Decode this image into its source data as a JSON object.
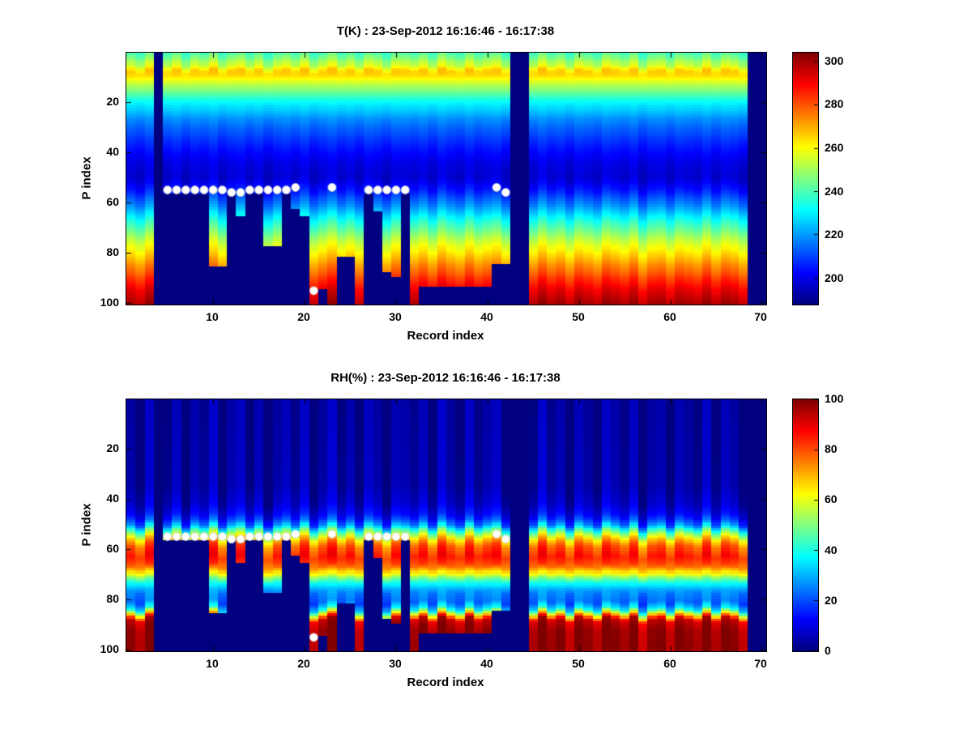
{
  "figure": {
    "background": "#ffffff",
    "masked_color": "#000080",
    "dot_color": "#ffffff"
  },
  "shared": {
    "n_records": 70,
    "n_levels": 100,
    "record_offsets": [
      0.2,
      -0.5,
      0.8,
      0.1,
      -0.3,
      0.6,
      -0.8,
      0.4,
      -0.1,
      0.9,
      -0.6,
      0.3,
      0.7,
      -0.4,
      0.5,
      -0.9,
      0.2,
      0.6,
      -0.2,
      0.8,
      -0.7,
      0.1,
      0.9,
      -0.3,
      0.4,
      -0.6,
      0.7,
      0.2,
      -0.8,
      0.5,
      0.3,
      -0.1,
      0.6,
      -0.5,
      0.9,
      0.1,
      -0.4,
      0.8,
      -0.2,
      0.3,
      0.7,
      -0.6,
      0.2,
      0.5,
      -0.3,
      0.9,
      -0.1,
      0.4,
      -0.7,
      0.6,
      0.1,
      -0.5,
      0.8,
      0.3,
      -0.2,
      0.7,
      -0.9,
      0.2,
      0.4,
      -0.6,
      0.5,
      0.1,
      -0.3,
      0.8,
      -0.4,
      0.6,
      0.2,
      -0.7,
      0.3,
      0.5
    ],
    "surface_mask_start": [
      101,
      101,
      101,
      0,
      57,
      57,
      57,
      57,
      57,
      86,
      86,
      57,
      66,
      57,
      57,
      78,
      78,
      57,
      63,
      66,
      101,
      95,
      101,
      82,
      82,
      101,
      57,
      64,
      88,
      90,
      57,
      101,
      94,
      94,
      94,
      94,
      94,
      94,
      94,
      94,
      85,
      85,
      0,
      0,
      101,
      101,
      101,
      101,
      101,
      101,
      101,
      101,
      101,
      101,
      101,
      101,
      101,
      101,
      101,
      101,
      101,
      101,
      101,
      101,
      101,
      101,
      101,
      101,
      0,
      0
    ],
    "white_dots": [
      [
        5,
        55
      ],
      [
        6,
        55
      ],
      [
        7,
        55
      ],
      [
        8,
        55
      ],
      [
        9,
        55
      ],
      [
        10,
        55
      ],
      [
        11,
        55
      ],
      [
        12,
        56
      ],
      [
        13,
        56
      ],
      [
        14,
        55
      ],
      [
        15,
        55
      ],
      [
        16,
        55
      ],
      [
        17,
        55
      ],
      [
        18,
        55
      ],
      [
        19,
        54
      ],
      [
        21,
        95
      ],
      [
        23,
        54
      ],
      [
        27,
        55
      ],
      [
        28,
        55
      ],
      [
        29,
        55
      ],
      [
        30,
        55
      ],
      [
        31,
        55
      ],
      [
        41,
        54
      ],
      [
        42,
        56
      ]
    ]
  },
  "chart_data": [
    {
      "type": "heatmap",
      "title": "T(K) : 23-Sep-2012 16:16:46 - 16:17:38",
      "xlabel": "Record index",
      "ylabel": "P index",
      "x_ticks": [
        10,
        20,
        30,
        40,
        50,
        60,
        70
      ],
      "y_ticks": [
        20,
        40,
        60,
        80,
        100
      ],
      "x_range": [
        1,
        70
      ],
      "y_range": [
        1,
        100
      ],
      "y_inverted": true,
      "colormap": "jet",
      "colorbar": {
        "vmin": 188,
        "vmax": 304,
        "ticks": [
          200,
          220,
          240,
          260,
          280,
          300
        ]
      },
      "profile_p_value": [
        [
          1,
          240
        ],
        [
          5,
          252
        ],
        [
          8,
          266
        ],
        [
          10,
          264
        ],
        [
          14,
          250
        ],
        [
          20,
          232
        ],
        [
          27,
          218
        ],
        [
          35,
          208
        ],
        [
          44,
          199
        ],
        [
          50,
          197
        ],
        [
          55,
          204
        ],
        [
          60,
          215
        ],
        [
          65,
          228
        ],
        [
          70,
          241
        ],
        [
          75,
          253
        ],
        [
          80,
          263
        ],
        [
          85,
          273
        ],
        [
          90,
          283
        ],
        [
          95,
          292
        ],
        [
          100,
          299
        ]
      ],
      "texture_amp": 3,
      "p_shift_amp": 1.0
    },
    {
      "type": "heatmap",
      "title": "RH(%) : 23-Sep-2012 16:16:46 - 16:17:38",
      "xlabel": "Record index",
      "ylabel": "P index",
      "x_ticks": [
        10,
        20,
        30,
        40,
        50,
        60,
        70
      ],
      "y_ticks": [
        20,
        40,
        60,
        80,
        100
      ],
      "x_range": [
        1,
        70
      ],
      "y_range": [
        1,
        100
      ],
      "y_inverted": true,
      "colormap": "jet",
      "colorbar": {
        "vmin": 0,
        "vmax": 100,
        "ticks": [
          0,
          20,
          40,
          60,
          80,
          100
        ]
      },
      "profile_p_value": [
        [
          1,
          2
        ],
        [
          35,
          3
        ],
        [
          42,
          6
        ],
        [
          47,
          12
        ],
        [
          50,
          22
        ],
        [
          53,
          45
        ],
        [
          56,
          65
        ],
        [
          59,
          78
        ],
        [
          63,
          85
        ],
        [
          67,
          78
        ],
        [
          70,
          60
        ],
        [
          73,
          40
        ],
        [
          77,
          26
        ],
        [
          81,
          22
        ],
        [
          84,
          35
        ],
        [
          86,
          62
        ],
        [
          88,
          92
        ],
        [
          92,
          97
        ],
        [
          100,
          98
        ]
      ],
      "texture_amp": 6,
      "p_shift_amp": 1.5
    }
  ]
}
